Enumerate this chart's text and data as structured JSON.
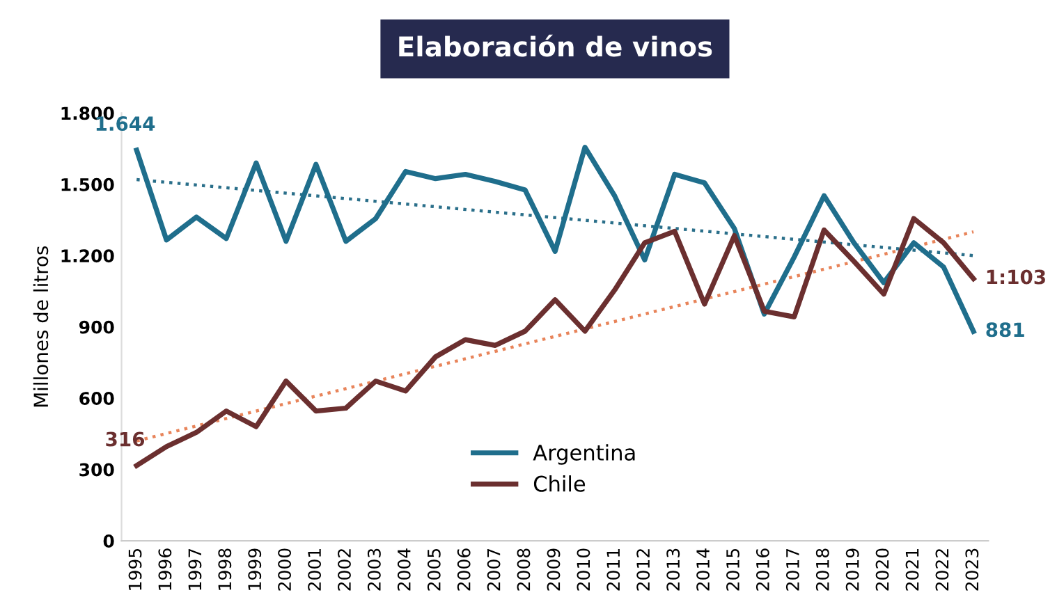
{
  "chart_data": {
    "type": "line",
    "title": "Elaboración de vinos",
    "ylabel": "Millones de litros",
    "x": [
      "1995",
      "1996",
      "1997",
      "1998",
      "1999",
      "2000",
      "2001",
      "2002",
      "2003",
      "2004",
      "2005",
      "2006",
      "2007",
      "2008",
      "2009",
      "2010",
      "2011",
      "2012",
      "2013",
      "2014",
      "2015",
      "2016",
      "2017",
      "2018",
      "2019",
      "2020",
      "2021",
      "2022",
      "2023"
    ],
    "series": [
      {
        "name": "Argentina",
        "color": "#1f6e8c",
        "values": [
          1644,
          1266,
          1362,
          1272,
          1590,
          1260,
          1584,
          1260,
          1356,
          1554,
          1524,
          1542,
          1512,
          1476,
          1218,
          1656,
          1450,
          1182,
          1542,
          1506,
          1314,
          954,
          1194,
          1452,
          1254,
          1086,
          1254,
          1152,
          881
        ]
      },
      {
        "name": "Chile",
        "color": "#6b2f2f",
        "values": [
          316,
          396,
          456,
          546,
          480,
          672,
          546,
          558,
          672,
          630,
          774,
          846,
          822,
          882,
          1014,
          882,
          1056,
          1254,
          1302,
          996,
          1284,
          966,
          942,
          1308,
          1176,
          1038,
          1356,
          1254,
          1103
        ]
      },
      {
        "type": "line",
        "line_style": "dotted",
        "color": "#2a6f8a",
        "x": [
          "1995",
          "2023"
        ],
        "values": [
          1520,
          1200
        ]
      },
      {
        "type": "line",
        "line_style": "dotted",
        "color": "#e8845a",
        "x": [
          "1995",
          "2023"
        ],
        "values": [
          420,
          1300
        ]
      }
    ],
    "xlim": [
      "1994-07",
      "2023-07"
    ],
    "xticks": [
      "1995",
      "1996",
      "1997",
      "1998",
      "1999",
      "2000",
      "2001",
      "2002",
      "2003",
      "2004",
      "2005",
      "2006",
      "2007",
      "2008",
      "2009",
      "2010",
      "2011",
      "2012",
      "2013",
      "2014",
      "2015",
      "2016",
      "2017",
      "2018",
      "2019",
      "2020",
      "2021",
      "2022",
      "2023"
    ],
    "ylim": [
      0,
      1800
    ],
    "yticks": [
      0,
      300,
      600,
      900,
      {
        "value": 1200,
        "label": "1.200"
      },
      {
        "value": 1500,
        "label": "1.500"
      },
      {
        "value": 1800,
        "label": "1.800"
      }
    ],
    "annotations": [
      {
        "text": "1.644",
        "x": "1995",
        "y": 1644
      },
      {
        "text": "316",
        "x": "1995",
        "y": 316
      },
      {
        "text": "881",
        "x": "2023",
        "y": 881
      },
      {
        "text": "1:103",
        "x": "2023",
        "y": 1103
      }
    ],
    "grid": false,
    "legend": "bottom",
    "marker": "none",
    "line_style": "solid"
  }
}
